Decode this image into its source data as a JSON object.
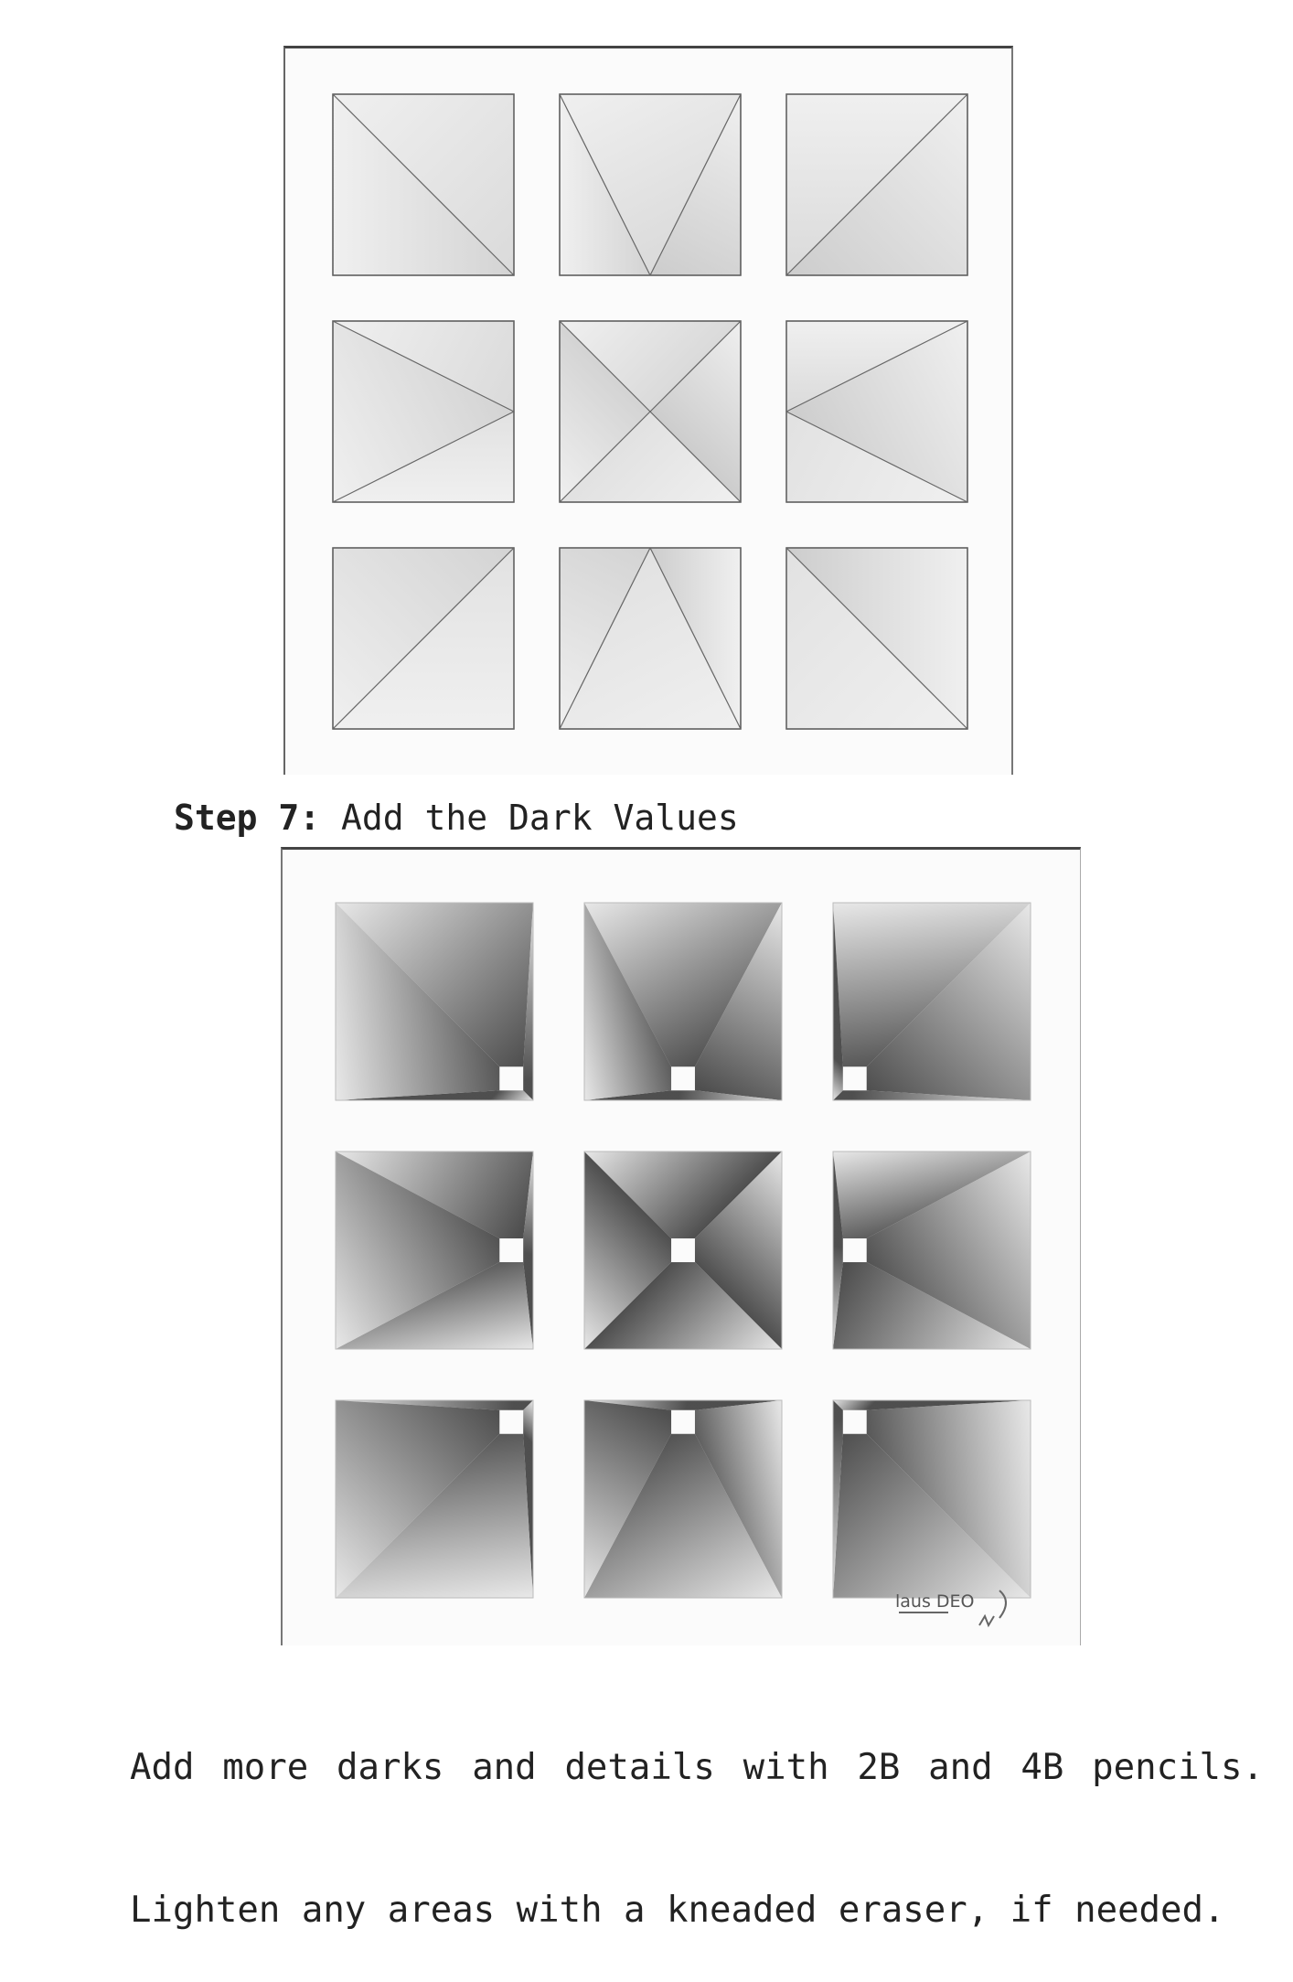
{
  "figure_top": {
    "description_hidden": "",
    "cells": [
      {
        "vp": "bottom-right"
      },
      {
        "vp": "bottom-center"
      },
      {
        "vp": "bottom-left"
      },
      {
        "vp": "middle-right"
      },
      {
        "vp": "center"
      },
      {
        "vp": "middle-left"
      },
      {
        "vp": "top-right"
      },
      {
        "vp": "top-center"
      },
      {
        "vp": "top-left"
      }
    ]
  },
  "step": {
    "label": "Step 7:",
    "title": " Add the Dark Values"
  },
  "figure_bottom": {
    "signature": "laus DEO"
  },
  "caption": {
    "line1": "Add more darks and details with 2B and 4B pencils.",
    "line2": "Lighten any areas with a kneaded eraser, if needed."
  },
  "colors": {
    "paper": "#fbfbfb",
    "pencil_light": "#d6d6d6",
    "pencil_mid": "#9a9a9a",
    "pencil_dark": "#3c3c3c"
  }
}
